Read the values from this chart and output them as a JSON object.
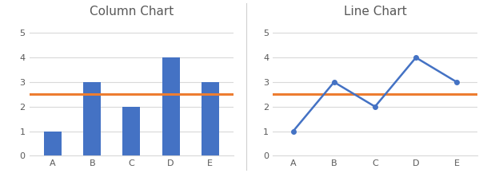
{
  "categories": [
    "A",
    "B",
    "C",
    "D",
    "E"
  ],
  "values": [
    1,
    3,
    2,
    4,
    3
  ],
  "hline_value": 2.5,
  "bar_color": "#4472C4",
  "line_color": "#4472C4",
  "hline_color": "#ED7D31",
  "col_title": "Column Chart",
  "line_title": "Line Chart",
  "ylim": [
    0,
    5.5
  ],
  "yticks": [
    0,
    1,
    2,
    3,
    4,
    5
  ],
  "title_fontsize": 11,
  "tick_fontsize": 8,
  "background_color": "#FFFFFF",
  "plot_bg_color": "#FFFFFF",
  "border_color": "#D0D0D0",
  "hline_linewidth": 2.2,
  "line_linewidth": 1.8,
  "line_marker": "o",
  "line_markersize": 4,
  "bar_width": 0.45
}
